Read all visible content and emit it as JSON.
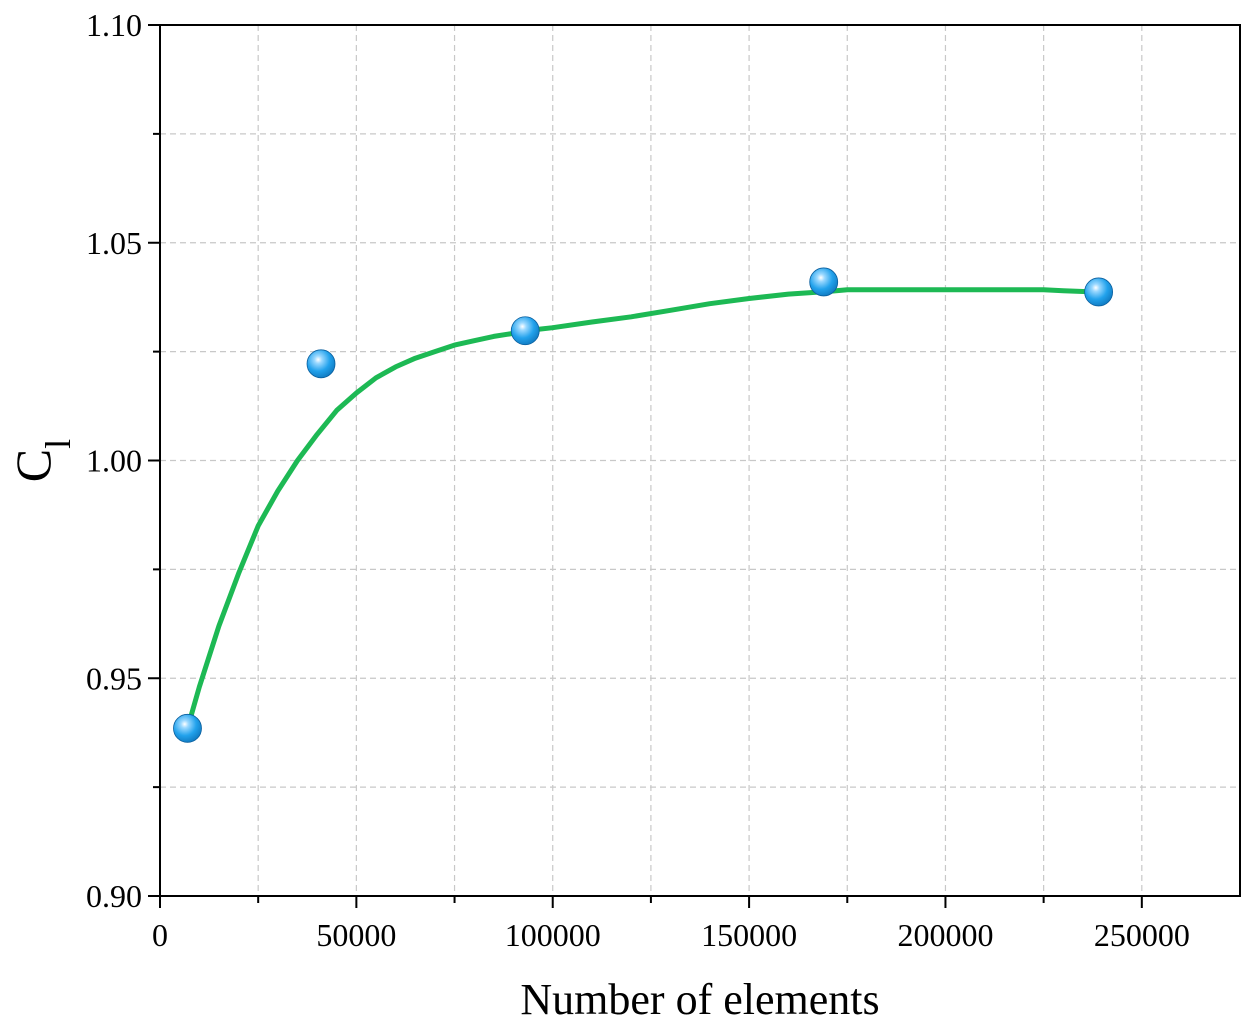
{
  "chart_data": {
    "type": "scatter",
    "title": "",
    "xlabel": "Number of elements",
    "ylabel": {
      "main": "C",
      "subscript": "l"
    },
    "xlim": [
      0,
      275000
    ],
    "ylim": [
      0.9,
      1.1
    ],
    "x_ticks": [
      0,
      50000,
      100000,
      150000,
      200000,
      250000
    ],
    "x_tick_labels": [
      "0",
      "50000",
      "100000",
      "150000",
      "200000",
      "250000"
    ],
    "x_minor_ticks": [
      25000,
      75000,
      125000,
      175000,
      225000
    ],
    "y_ticks": [
      0.9,
      0.95,
      1.0,
      1.05,
      1.1
    ],
    "y_tick_labels": [
      "0.90",
      "0.95",
      "1.00",
      "1.05",
      "1.10"
    ],
    "y_minor_ticks": [
      0.925,
      0.975,
      1.025,
      1.075
    ],
    "grid": true,
    "series": [
      {
        "kind": "points",
        "color": "#1f9fe8",
        "x": [
          7000,
          41000,
          93000,
          169000,
          239000
        ],
        "y": [
          0.9385,
          1.0222,
          1.0298,
          1.041,
          1.0387
        ]
      },
      {
        "kind": "fitted-curve",
        "color": "#1db954",
        "x": [
          7000,
          10000,
          15000,
          20000,
          25000,
          30000,
          35000,
          40000,
          45000,
          50000,
          55000,
          60000,
          65000,
          70000,
          75000,
          80000,
          85000,
          90000,
          95000,
          100000,
          110000,
          120000,
          130000,
          140000,
          150000,
          160000,
          170000,
          175000,
          180000,
          190000,
          200000,
          210000,
          220000,
          225000,
          230000,
          235000,
          239000
        ],
        "y": [
          0.9385,
          0.948,
          0.962,
          0.974,
          0.985,
          0.993,
          1.0,
          1.006,
          1.0115,
          1.0155,
          1.019,
          1.0215,
          1.0235,
          1.025,
          1.0265,
          1.0275,
          1.0285,
          1.0292,
          1.03,
          1.0305,
          1.0318,
          1.033,
          1.0345,
          1.036,
          1.0372,
          1.0382,
          1.0388,
          1.0392,
          1.0392,
          1.0392,
          1.0392,
          1.0392,
          1.0392,
          1.0392,
          1.039,
          1.0388,
          1.0387
        ]
      }
    ]
  }
}
